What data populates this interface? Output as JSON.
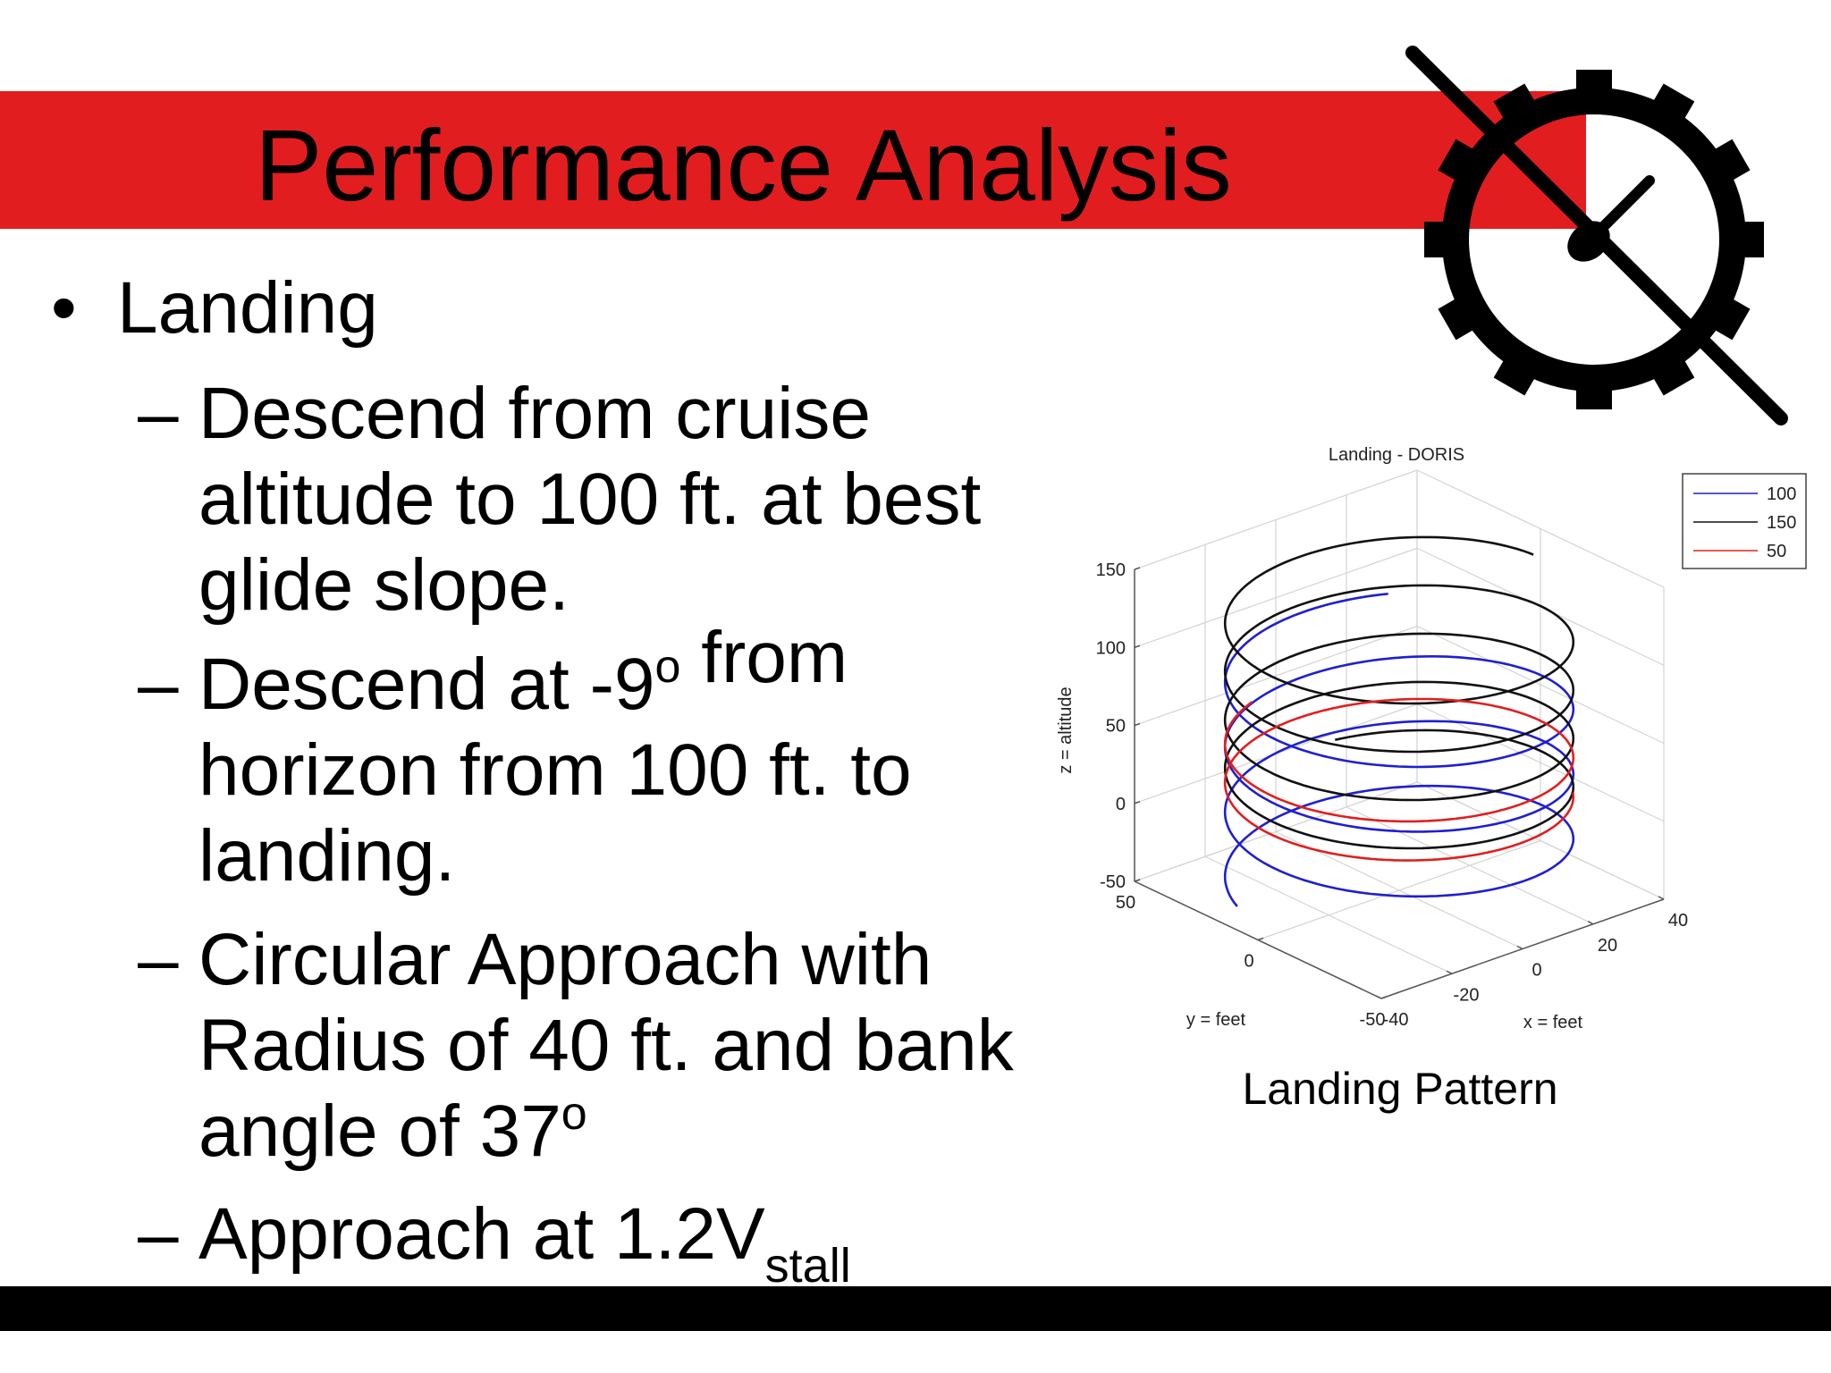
{
  "slide": {
    "title": "Performance Analysis",
    "bullet": "•",
    "dash": "–",
    "heading": "Landing",
    "items": [
      [
        [
          "Descend from cruise"
        ],
        [
          "altitude to 100 ft. at best"
        ],
        [
          "glide slope."
        ]
      ],
      [
        [
          "Descend at -9",
          {
            "sup": "o"
          },
          " from"
        ],
        [
          "horizon from 100 ft. to"
        ],
        [
          "landing."
        ]
      ],
      [
        [
          "Circular Approach with"
        ],
        [
          "Radius of 40 ft. and bank"
        ],
        [
          "angle of 37",
          {
            "sup": "o"
          }
        ]
      ],
      [
        [
          "Approach at 1.2V",
          {
            "sub": "stall"
          }
        ]
      ]
    ],
    "caption": "Landing Pattern"
  },
  "chart_data": {
    "type": "line3d",
    "title": "Landing - DORIS",
    "xlabel": "x = feet",
    "ylabel": "y = feet",
    "zlabel": "z = altitude",
    "xlim": [
      -40,
      40
    ],
    "xticks": [
      -40,
      -20,
      0,
      20,
      40
    ],
    "ylim": [
      -50,
      50
    ],
    "yticks": [
      -50,
      0,
      50
    ],
    "zlim": [
      -50,
      150
    ],
    "zticks": [
      -50,
      0,
      50,
      100,
      150
    ],
    "grid": true,
    "legend": "upper right",
    "series": [
      {
        "name": "100",
        "color": "#1f1fd0"
      },
      {
        "name": "150",
        "color": "#111111"
      },
      {
        "name": "50",
        "color": "#e01f1f"
      }
    ]
  }
}
